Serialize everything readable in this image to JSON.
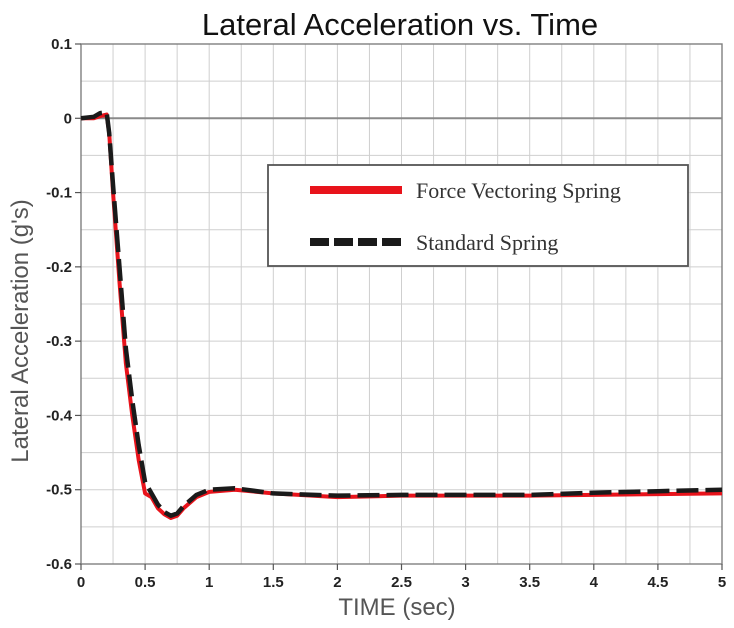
{
  "chart_data": {
    "type": "line",
    "title": "Lateral Acceleration vs. Time",
    "xlabel": "TIME (sec)",
    "ylabel": "Lateral Acceleration (g's)",
    "xlim": [
      0,
      5
    ],
    "ylim": [
      -0.6,
      0.1
    ],
    "x_ticks": [
      {
        "value": 0,
        "label": "0"
      },
      {
        "value": 0.5,
        "label": "0.5"
      },
      {
        "value": 1,
        "label": "1"
      },
      {
        "value": 1.5,
        "label": "1.5"
      },
      {
        "value": 2,
        "label": "2"
      },
      {
        "value": 2.5,
        "label": "2.5"
      },
      {
        "value": 3,
        "label": "3"
      },
      {
        "value": 3.5,
        "label": "3.5"
      },
      {
        "value": 4,
        "label": "4"
      },
      {
        "value": 4.5,
        "label": "4.5"
      },
      {
        "value": 5,
        "label": "5"
      }
    ],
    "y_ticks": [
      {
        "value": 0.1,
        "label": "0.1"
      },
      {
        "value": 0,
        "label": "0"
      },
      {
        "value": -0.1,
        "label": "-0.1"
      },
      {
        "value": -0.2,
        "label": "-0.2"
      },
      {
        "value": -0.3,
        "label": "-0.3"
      },
      {
        "value": -0.4,
        "label": "-0.4"
      },
      {
        "value": -0.5,
        "label": "-0.5"
      },
      {
        "value": -0.6,
        "label": "-0.6"
      }
    ],
    "grid": true,
    "legend_position": "upper-right",
    "series": [
      {
        "name": "Force Vectoring Spring",
        "color": "#e8131b",
        "dash": "solid",
        "points": [
          [
            0,
            0
          ],
          [
            0.1,
            0
          ],
          [
            0.15,
            0.003
          ],
          [
            0.2,
            0.005
          ],
          [
            0.22,
            -0.02
          ],
          [
            0.25,
            -0.1
          ],
          [
            0.3,
            -0.22
          ],
          [
            0.35,
            -0.33
          ],
          [
            0.4,
            -0.4
          ],
          [
            0.45,
            -0.46
          ],
          [
            0.5,
            -0.505
          ],
          [
            0.55,
            -0.51
          ],
          [
            0.6,
            -0.525
          ],
          [
            0.65,
            -0.533
          ],
          [
            0.7,
            -0.538
          ],
          [
            0.75,
            -0.535
          ],
          [
            0.8,
            -0.525
          ],
          [
            0.9,
            -0.51
          ],
          [
            1.0,
            -0.503
          ],
          [
            1.2,
            -0.5
          ],
          [
            1.5,
            -0.505
          ],
          [
            2.0,
            -0.51
          ],
          [
            2.5,
            -0.508
          ],
          [
            3.0,
            -0.508
          ],
          [
            3.5,
            -0.508
          ],
          [
            4.0,
            -0.507
          ],
          [
            4.5,
            -0.506
          ],
          [
            5.0,
            -0.505
          ]
        ]
      },
      {
        "name": "Standard Spring",
        "color": "#1a1a1a",
        "dash": "dashed",
        "points": [
          [
            0,
            0
          ],
          [
            0.1,
            0.002
          ],
          [
            0.15,
            0.007
          ],
          [
            0.2,
            0.008
          ],
          [
            0.22,
            -0.02
          ],
          [
            0.25,
            -0.09
          ],
          [
            0.3,
            -0.2
          ],
          [
            0.35,
            -0.31
          ],
          [
            0.4,
            -0.38
          ],
          [
            0.45,
            -0.44
          ],
          [
            0.5,
            -0.49
          ],
          [
            0.55,
            -0.505
          ],
          [
            0.6,
            -0.52
          ],
          [
            0.65,
            -0.53
          ],
          [
            0.7,
            -0.535
          ],
          [
            0.75,
            -0.532
          ],
          [
            0.8,
            -0.522
          ],
          [
            0.9,
            -0.507
          ],
          [
            1.0,
            -0.5
          ],
          [
            1.2,
            -0.498
          ],
          [
            1.5,
            -0.505
          ],
          [
            2.0,
            -0.508
          ],
          [
            2.5,
            -0.507
          ],
          [
            3.0,
            -0.507
          ],
          [
            3.5,
            -0.507
          ],
          [
            4.0,
            -0.504
          ],
          [
            4.5,
            -0.502
          ],
          [
            5.0,
            -0.5
          ]
        ]
      }
    ]
  }
}
